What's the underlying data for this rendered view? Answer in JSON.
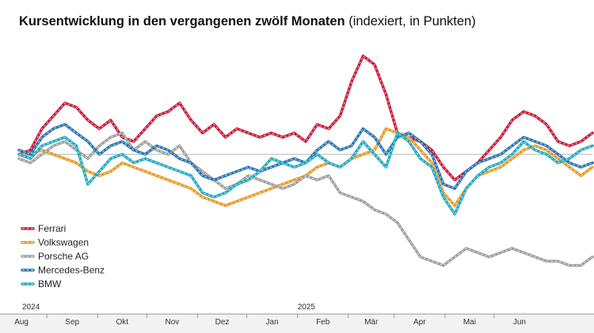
{
  "title": {
    "bold": "Kursentwicklung in den vergangenen zwölf Monaten",
    "normal": " (indexiert, in Punkten)"
  },
  "chart_data": {
    "type": "line",
    "title": "Kursentwicklung in den vergangenen zwölf Monaten (indexiert, in Punkten)",
    "xlabel": "",
    "ylabel": "",
    "x_range": [
      "2024-07-15",
      "2025-06-30"
    ],
    "x_ticks": [
      "Aug",
      "Sep",
      "Okt",
      "Nov",
      "Dez",
      "Jan",
      "Feb",
      "Mär",
      "Apr",
      "Mai",
      "Jun"
    ],
    "year_labels": [
      {
        "text": "2024",
        "x": "2024-07-15"
      },
      {
        "text": "2025",
        "x": "2025-01-01"
      }
    ],
    "baseline": 100,
    "ylim": [
      68,
      125
    ],
    "grid": false,
    "legend_position": "bottom-left",
    "series": [
      {
        "name": "Ferrari",
        "color": "#c8102e",
        "x": [
          "2024-07-15",
          "2024-07-22",
          "2024-07-29",
          "2024-08-05",
          "2024-08-12",
          "2024-08-19",
          "2024-08-26",
          "2024-09-02",
          "2024-09-09",
          "2024-09-16",
          "2024-09-23",
          "2024-09-30",
          "2024-10-07",
          "2024-10-14",
          "2024-10-21",
          "2024-10-28",
          "2024-11-04",
          "2024-11-11",
          "2024-11-18",
          "2024-11-25",
          "2024-12-02",
          "2024-12-09",
          "2024-12-16",
          "2024-12-23",
          "2024-12-30",
          "2025-01-06",
          "2025-01-13",
          "2025-01-20",
          "2025-01-27",
          "2025-02-03",
          "2025-02-10",
          "2025-02-17",
          "2025-02-24",
          "2025-03-03",
          "2025-03-10",
          "2025-03-17",
          "2025-03-24",
          "2025-03-31",
          "2025-04-07",
          "2025-04-14",
          "2025-04-21",
          "2025-04-28",
          "2025-05-05",
          "2025-05-12",
          "2025-05-19",
          "2025-05-26",
          "2025-06-02",
          "2025-06-09",
          "2025-06-16",
          "2025-06-23",
          "2025-06-30"
        ],
        "values": [
          100,
          101,
          106,
          109,
          112,
          111,
          108,
          106,
          108,
          104,
          103,
          106,
          109,
          110,
          112,
          108,
          105,
          107,
          104,
          106,
          105,
          104,
          105,
          104,
          105,
          103,
          107,
          106,
          109,
          117,
          123,
          121,
          114,
          105,
          104,
          103,
          101,
          97,
          94,
          96,
          98,
          101,
          104,
          108,
          110,
          109,
          107,
          103,
          102,
          103,
          105
        ]
      },
      {
        "name": "Volkswagen",
        "color": "#e8941a",
        "x": [
          "2024-07-15",
          "2024-07-22",
          "2024-07-29",
          "2024-08-05",
          "2024-08-12",
          "2024-08-19",
          "2024-08-26",
          "2024-09-02",
          "2024-09-09",
          "2024-09-16",
          "2024-09-23",
          "2024-09-30",
          "2024-10-07",
          "2024-10-14",
          "2024-10-21",
          "2024-10-28",
          "2024-11-04",
          "2024-11-11",
          "2024-11-18",
          "2024-11-25",
          "2024-12-02",
          "2024-12-09",
          "2024-12-16",
          "2024-12-23",
          "2024-12-30",
          "2025-01-06",
          "2025-01-13",
          "2025-01-20",
          "2025-01-27",
          "2025-02-03",
          "2025-02-10",
          "2025-02-17",
          "2025-02-24",
          "2025-03-03",
          "2025-03-10",
          "2025-03-17",
          "2025-03-24",
          "2025-03-31",
          "2025-04-07",
          "2025-04-14",
          "2025-04-21",
          "2025-04-28",
          "2025-05-05",
          "2025-05-12",
          "2025-05-19",
          "2025-05-26",
          "2025-06-02",
          "2025-06-09",
          "2025-06-16",
          "2025-06-23",
          "2025-06-30"
        ],
        "values": [
          100,
          100,
          101,
          100,
          99,
          98,
          96,
          95,
          96,
          98,
          97,
          96,
          95,
          94,
          93,
          92,
          90,
          89,
          88,
          89,
          90,
          91,
          92,
          93,
          94,
          95,
          97,
          98,
          97,
          99,
          100,
          101,
          106,
          105,
          104,
          101,
          98,
          91,
          88,
          92,
          95,
          96,
          97,
          99,
          101,
          102,
          101,
          99,
          97,
          95,
          97
        ]
      },
      {
        "name": "Porsche AG",
        "color": "#9b9b9b",
        "x": [
          "2024-07-15",
          "2024-07-22",
          "2024-07-29",
          "2024-08-05",
          "2024-08-12",
          "2024-08-19",
          "2024-08-26",
          "2024-09-02",
          "2024-09-09",
          "2024-09-16",
          "2024-09-23",
          "2024-09-30",
          "2024-10-07",
          "2024-10-14",
          "2024-10-21",
          "2024-10-28",
          "2024-11-04",
          "2024-11-11",
          "2024-11-18",
          "2024-11-25",
          "2024-12-02",
          "2024-12-09",
          "2024-12-16",
          "2024-12-23",
          "2024-12-30",
          "2025-01-06",
          "2025-01-13",
          "2025-01-20",
          "2025-01-27",
          "2025-02-03",
          "2025-02-10",
          "2025-02-17",
          "2025-02-24",
          "2025-03-03",
          "2025-03-10",
          "2025-03-17",
          "2025-03-24",
          "2025-03-31",
          "2025-04-07",
          "2025-04-14",
          "2025-04-21",
          "2025-04-28",
          "2025-05-05",
          "2025-05-12",
          "2025-05-19",
          "2025-05-26",
          "2025-06-02",
          "2025-06-09",
          "2025-06-16",
          "2025-06-23",
          "2025-06-30"
        ],
        "values": [
          99,
          98,
          100,
          102,
          103,
          101,
          99,
          102,
          104,
          105,
          101,
          103,
          101,
          100,
          102,
          98,
          96,
          94,
          92,
          93,
          95,
          94,
          93,
          92,
          93,
          95,
          94,
          95,
          91,
          90,
          89,
          87,
          86,
          84,
          80,
          76,
          75,
          74,
          76,
          78,
          77,
          76,
          77,
          78,
          77,
          76,
          75,
          75,
          74,
          74,
          76
        ]
      },
      {
        "name": "Mercedes-Benz",
        "color": "#1f6fb2",
        "x": [
          "2024-07-15",
          "2024-07-22",
          "2024-07-29",
          "2024-08-05",
          "2024-08-12",
          "2024-08-19",
          "2024-08-26",
          "2024-09-02",
          "2024-09-09",
          "2024-09-16",
          "2024-09-23",
          "2024-09-30",
          "2024-10-07",
          "2024-10-14",
          "2024-10-21",
          "2024-10-28",
          "2024-11-04",
          "2024-11-11",
          "2024-11-18",
          "2024-11-25",
          "2024-12-02",
          "2024-12-09",
          "2024-12-16",
          "2024-12-23",
          "2024-12-30",
          "2025-01-06",
          "2025-01-13",
          "2025-01-20",
          "2025-01-27",
          "2025-02-03",
          "2025-02-10",
          "2025-02-17",
          "2025-02-24",
          "2025-03-03",
          "2025-03-10",
          "2025-03-17",
          "2025-03-24",
          "2025-03-31",
          "2025-04-07",
          "2025-04-14",
          "2025-04-21",
          "2025-04-28",
          "2025-05-05",
          "2025-05-12",
          "2025-05-19",
          "2025-05-26",
          "2025-06-02",
          "2025-06-09",
          "2025-06-16",
          "2025-06-23",
          "2025-06-30"
        ],
        "values": [
          101,
          100,
          104,
          106,
          107,
          105,
          103,
          100,
          102,
          103,
          101,
          100,
          102,
          101,
          99,
          98,
          95,
          94,
          95,
          96,
          97,
          96,
          97,
          98,
          99,
          98,
          101,
          103,
          101,
          102,
          106,
          104,
          100,
          104,
          105,
          103,
          100,
          93,
          92,
          96,
          98,
          99,
          100,
          102,
          104,
          103,
          102,
          100,
          98,
          97,
          98
        ]
      },
      {
        "name": "BMW",
        "color": "#19a6c0",
        "x": [
          "2024-07-15",
          "2024-07-22",
          "2024-07-29",
          "2024-08-05",
          "2024-08-12",
          "2024-08-19",
          "2024-08-26",
          "2024-09-02",
          "2024-09-09",
          "2024-09-16",
          "2024-09-23",
          "2024-09-30",
          "2024-10-07",
          "2024-10-14",
          "2024-10-21",
          "2024-10-28",
          "2024-11-04",
          "2024-11-11",
          "2024-11-18",
          "2024-11-25",
          "2024-12-02",
          "2024-12-09",
          "2024-12-16",
          "2024-12-23",
          "2024-12-30",
          "2025-01-06",
          "2025-01-13",
          "2025-01-20",
          "2025-01-27",
          "2025-02-03",
          "2025-02-10",
          "2025-02-17",
          "2025-02-24",
          "2025-03-03",
          "2025-03-10",
          "2025-03-17",
          "2025-03-24",
          "2025-03-31",
          "2025-04-07",
          "2025-04-14",
          "2025-04-21",
          "2025-04-28",
          "2025-05-05",
          "2025-05-12",
          "2025-05-19",
          "2025-05-26",
          "2025-06-02",
          "2025-06-09",
          "2025-06-16",
          "2025-06-23",
          "2025-06-30"
        ],
        "values": [
          100,
          99,
          102,
          103,
          104,
          102,
          93,
          96,
          99,
          100,
          98,
          99,
          98,
          97,
          96,
          95,
          91,
          90,
          91,
          93,
          94,
          96,
          99,
          98,
          97,
          98,
          100,
          98,
          97,
          99,
          103,
          100,
          97,
          105,
          103,
          99,
          97,
          90,
          86,
          92,
          95,
          97,
          98,
          100,
          103,
          101,
          100,
          98,
          99,
          101,
          102
        ]
      }
    ]
  }
}
